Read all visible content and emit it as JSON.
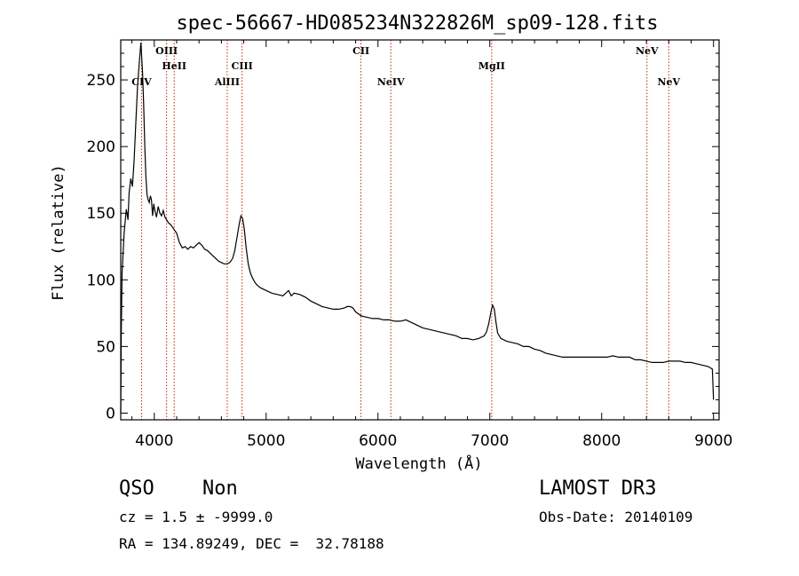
{
  "chart_data": {
    "type": "line",
    "title": "spec-56667-HD085234N322826M_sp09-128.fits",
    "xlabel": "Wavelength (Å)",
    "ylabel": "Flux (relative)",
    "xlim": [
      3700,
      9050
    ],
    "ylim": [
      -5,
      280
    ],
    "xticks": [
      4000,
      5000,
      6000,
      7000,
      8000,
      9000
    ],
    "yticks": [
      0,
      50,
      100,
      150,
      200,
      250
    ],
    "xtick_labels": [
      "4000",
      "5000",
      "6000",
      "7000",
      "8000",
      "9000"
    ],
    "ytick_labels": [
      "0",
      "50",
      "100",
      "150",
      "200",
      "250"
    ],
    "series": [
      {
        "name": "spectrum",
        "points": [
          [
            3700,
            0
          ],
          [
            3705,
            60
          ],
          [
            3712,
            105
          ],
          [
            3730,
            135
          ],
          [
            3750,
            153
          ],
          [
            3765,
            145
          ],
          [
            3775,
            165
          ],
          [
            3790,
            176
          ],
          [
            3805,
            170
          ],
          [
            3820,
            190
          ],
          [
            3835,
            218
          ],
          [
            3850,
            245
          ],
          [
            3865,
            262
          ],
          [
            3880,
            278
          ],
          [
            3895,
            255
          ],
          [
            3905,
            232
          ],
          [
            3915,
            200
          ],
          [
            3925,
            178
          ],
          [
            3935,
            164
          ],
          [
            3945,
            160
          ],
          [
            3955,
            158
          ],
          [
            3965,
            163
          ],
          [
            3975,
            160
          ],
          [
            3985,
            148
          ],
          [
            3995,
            157
          ],
          [
            4005,
            152
          ],
          [
            4020,
            147
          ],
          [
            4035,
            155
          ],
          [
            4050,
            150
          ],
          [
            4065,
            148
          ],
          [
            4080,
            152
          ],
          [
            4095,
            147
          ],
          [
            4110,
            145
          ],
          [
            4125,
            143
          ],
          [
            4150,
            141
          ],
          [
            4175,
            138
          ],
          [
            4200,
            135
          ],
          [
            4225,
            128
          ],
          [
            4250,
            124
          ],
          [
            4275,
            125
          ],
          [
            4300,
            123
          ],
          [
            4325,
            125
          ],
          [
            4350,
            124
          ],
          [
            4375,
            126
          ],
          [
            4400,
            128
          ],
          [
            4425,
            126
          ],
          [
            4450,
            123
          ],
          [
            4475,
            122
          ],
          [
            4500,
            120
          ],
          [
            4525,
            118
          ],
          [
            4550,
            116
          ],
          [
            4575,
            114
          ],
          [
            4600,
            113
          ],
          [
            4625,
            112
          ],
          [
            4650,
            112
          ],
          [
            4675,
            113
          ],
          [
            4700,
            116
          ],
          [
            4720,
            122
          ],
          [
            4740,
            132
          ],
          [
            4760,
            142
          ],
          [
            4775,
            148
          ],
          [
            4790,
            146
          ],
          [
            4805,
            138
          ],
          [
            4820,
            125
          ],
          [
            4840,
            112
          ],
          [
            4860,
            105
          ],
          [
            4880,
            101
          ],
          [
            4900,
            98
          ],
          [
            4920,
            96
          ],
          [
            4950,
            94
          ],
          [
            5000,
            92
          ],
          [
            5050,
            90
          ],
          [
            5100,
            89
          ],
          [
            5150,
            88
          ],
          [
            5200,
            92
          ],
          [
            5225,
            88
          ],
          [
            5250,
            90
          ],
          [
            5300,
            89
          ],
          [
            5350,
            87
          ],
          [
            5400,
            84
          ],
          [
            5450,
            82
          ],
          [
            5500,
            80
          ],
          [
            5550,
            79
          ],
          [
            5600,
            78
          ],
          [
            5650,
            78
          ],
          [
            5700,
            79
          ],
          [
            5725,
            80
          ],
          [
            5750,
            80
          ],
          [
            5775,
            79
          ],
          [
            5800,
            76
          ],
          [
            5850,
            73
          ],
          [
            5900,
            72
          ],
          [
            5950,
            71
          ],
          [
            6000,
            71
          ],
          [
            6050,
            70
          ],
          [
            6100,
            70
          ],
          [
            6150,
            69
          ],
          [
            6200,
            69
          ],
          [
            6250,
            70
          ],
          [
            6300,
            68
          ],
          [
            6350,
            66
          ],
          [
            6400,
            64
          ],
          [
            6450,
            63
          ],
          [
            6500,
            62
          ],
          [
            6550,
            61
          ],
          [
            6600,
            60
          ],
          [
            6650,
            59
          ],
          [
            6700,
            58
          ],
          [
            6750,
            56
          ],
          [
            6800,
            56
          ],
          [
            6850,
            55
          ],
          [
            6900,
            56
          ],
          [
            6950,
            58
          ],
          [
            6970,
            61
          ],
          [
            6990,
            67
          ],
          [
            7010,
            76
          ],
          [
            7025,
            81
          ],
          [
            7040,
            78
          ],
          [
            7055,
            68
          ],
          [
            7070,
            60
          ],
          [
            7100,
            56
          ],
          [
            7150,
            54
          ],
          [
            7200,
            53
          ],
          [
            7250,
            52
          ],
          [
            7300,
            50
          ],
          [
            7350,
            50
          ],
          [
            7400,
            48
          ],
          [
            7450,
            47
          ],
          [
            7500,
            45
          ],
          [
            7550,
            44
          ],
          [
            7600,
            43
          ],
          [
            7650,
            42
          ],
          [
            7700,
            42
          ],
          [
            7750,
            42
          ],
          [
            7800,
            42
          ],
          [
            7850,
            42
          ],
          [
            7900,
            42
          ],
          [
            7950,
            42
          ],
          [
            8000,
            42
          ],
          [
            8050,
            42
          ],
          [
            8100,
            43
          ],
          [
            8150,
            42
          ],
          [
            8200,
            42
          ],
          [
            8250,
            42
          ],
          [
            8300,
            40
          ],
          [
            8350,
            40
          ],
          [
            8400,
            39
          ],
          [
            8450,
            38
          ],
          [
            8500,
            38
          ],
          [
            8550,
            38
          ],
          [
            8600,
            39
          ],
          [
            8650,
            39
          ],
          [
            8700,
            39
          ],
          [
            8750,
            38
          ],
          [
            8800,
            38
          ],
          [
            8850,
            37
          ],
          [
            8900,
            36
          ],
          [
            8950,
            35
          ],
          [
            8990,
            33
          ],
          [
            9000,
            10
          ]
        ]
      }
    ],
    "emission_lines": [
      {
        "label": "CIV",
        "x": 3886,
        "row": 2
      },
      {
        "label": "OIII",
        "x": 4110,
        "row": 0
      },
      {
        "label": "HeII",
        "x": 4178,
        "row": 1
      },
      {
        "label": "AlIII",
        "x": 4652,
        "row": 2
      },
      {
        "label": "CIII",
        "x": 4785,
        "row": 1
      },
      {
        "label": "CII",
        "x": 5848,
        "row": 0
      },
      {
        "label": "NeIV",
        "x": 6115,
        "row": 2
      },
      {
        "label": "MgII",
        "x": 7017,
        "row": 1
      },
      {
        "label": "NeV",
        "x": 8405,
        "row": 0
      },
      {
        "label": "NeV",
        "x": 8600,
        "row": 2
      }
    ],
    "line_color": "#000000",
    "marker_color": "#cc2200"
  },
  "info": {
    "class": "QSO",
    "subclass": "Non",
    "survey": "LAMOST DR3",
    "cz": "cz = 1.5 ± -9999.0",
    "obs_date": "Obs-Date: 20140109",
    "coords": "RA = 134.89249, DEC =  32.78188"
  }
}
